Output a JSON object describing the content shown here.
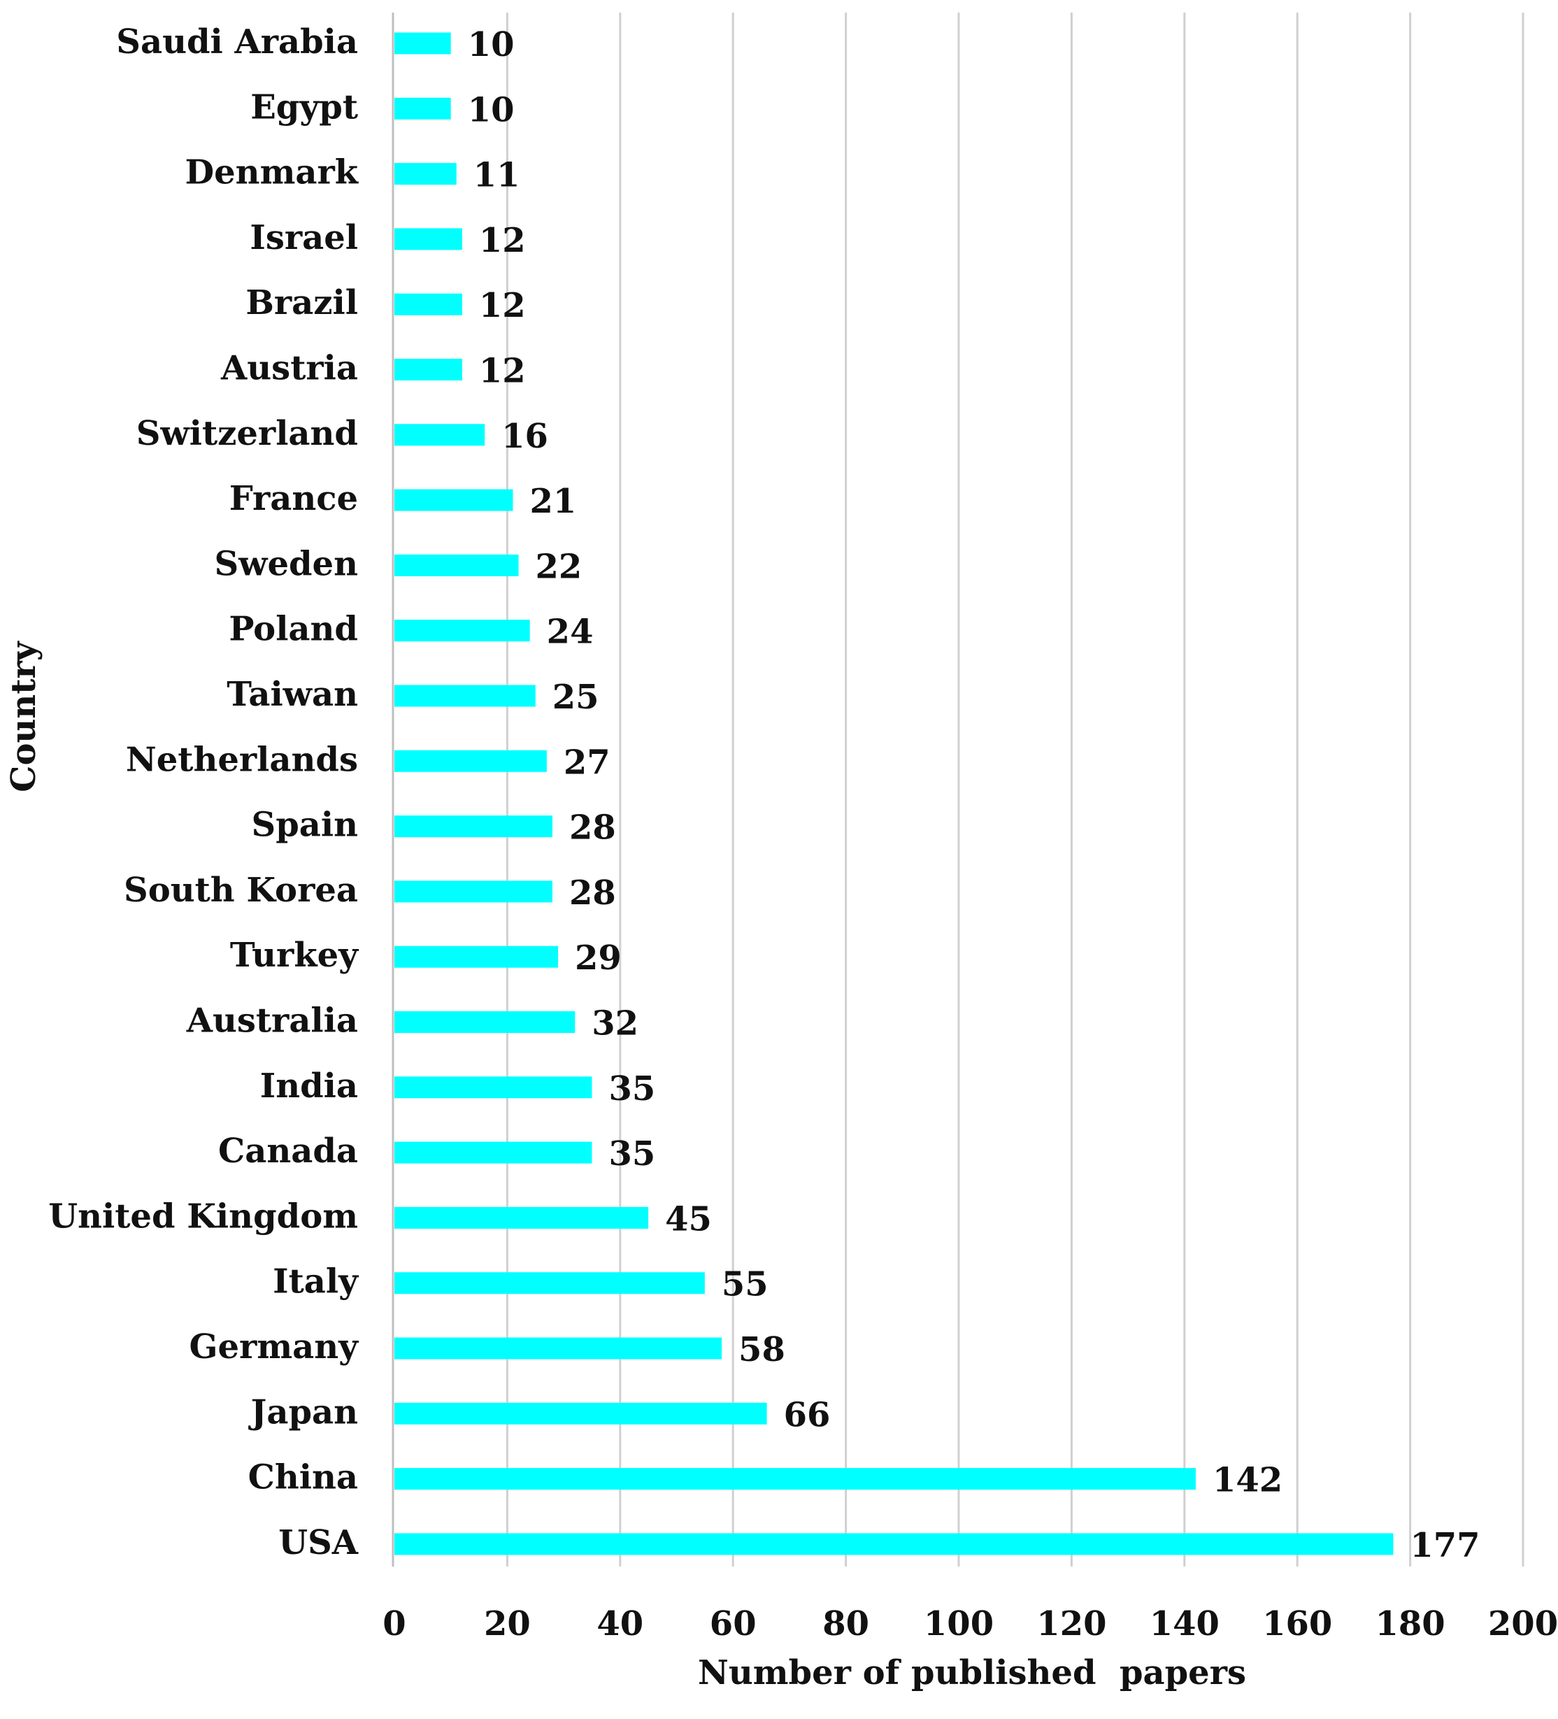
{
  "chart_data": {
    "type": "bar",
    "orientation": "horizontal",
    "title": "",
    "xlabel": "Number of published  papers",
    "ylabel": "Country",
    "xlim": [
      0,
      200
    ],
    "xticks": [
      0,
      20,
      40,
      60,
      80,
      100,
      120,
      140,
      160,
      180,
      200
    ],
    "grid": "vertical",
    "bar_color": "#00FFFF",
    "categories": [
      "Saudi Arabia",
      "Egypt",
      "Denmark",
      "Israel",
      "Brazil",
      "Austria",
      "Switzerland",
      "France",
      "Sweden",
      "Poland",
      "Taiwan",
      "Netherlands",
      "Spain",
      "South Korea",
      "Turkey",
      "Australia",
      "India",
      "Canada",
      "United Kingdom",
      "Italy",
      "Germany",
      "Japan",
      "China",
      "USA"
    ],
    "values": [
      10,
      10,
      11,
      12,
      12,
      12,
      16,
      21,
      22,
      24,
      25,
      27,
      28,
      28,
      29,
      32,
      35,
      35,
      45,
      55,
      58,
      66,
      142,
      177
    ],
    "value_labels": [
      "10",
      "10",
      "11",
      "12",
      "12",
      "12",
      "16",
      "21",
      "22",
      "24",
      "25",
      "27",
      "28",
      "28",
      "29",
      "32",
      "35",
      "35",
      "45",
      "55",
      "58",
      "66",
      "142",
      "177"
    ],
    "tick_labels": [
      "0",
      "20",
      "40",
      "60",
      "80",
      "100",
      "120",
      "140",
      "160",
      "180",
      "200"
    ]
  }
}
